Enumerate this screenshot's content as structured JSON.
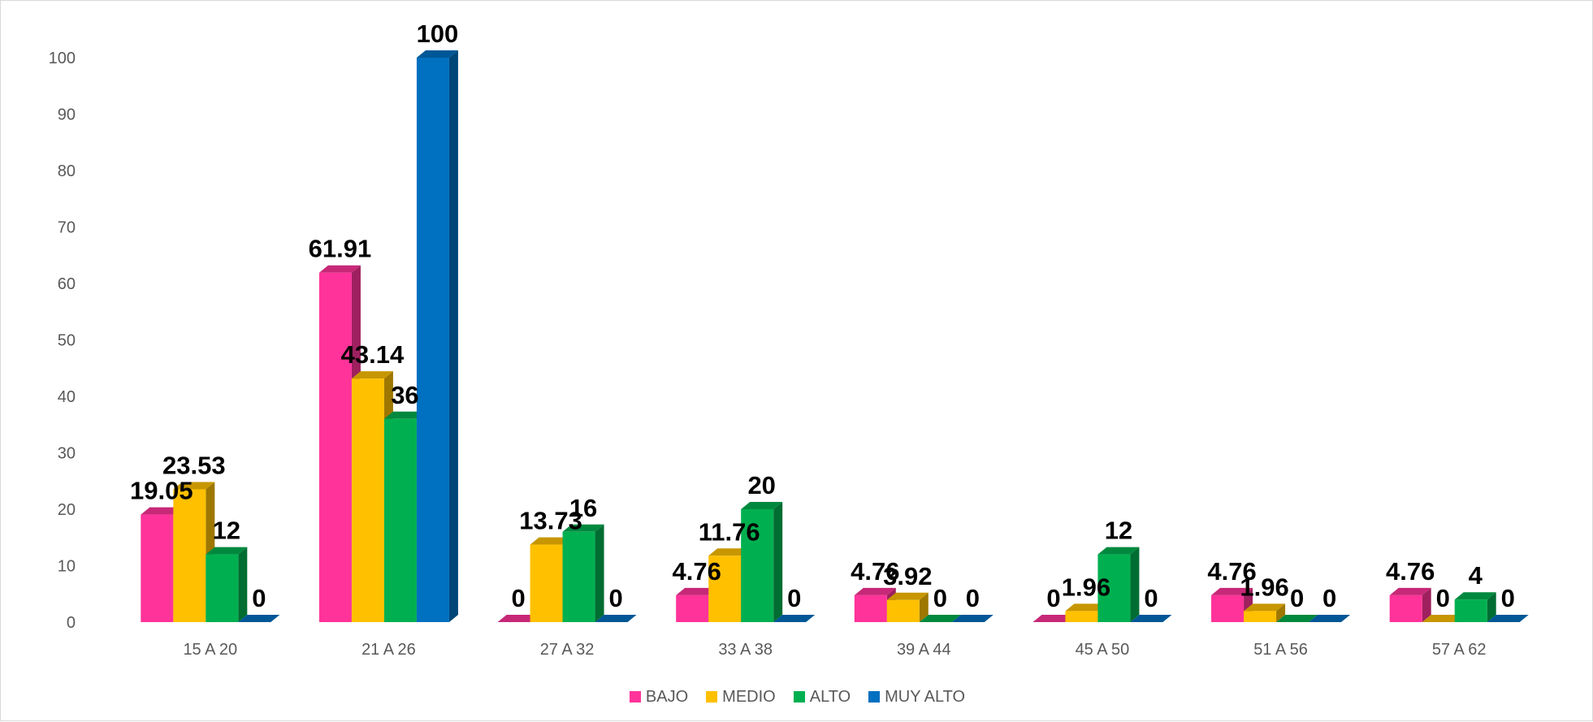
{
  "chart_data": {
    "type": "bar",
    "title": "",
    "xlabel": "",
    "ylabel": "",
    "ylim": [
      0,
      100
    ],
    "yticks": [
      0,
      10,
      20,
      30,
      40,
      50,
      60,
      70,
      80,
      90,
      100
    ],
    "grid": false,
    "legend_position": "bottom",
    "categories": [
      "15 A 20",
      "21 A 26",
      "27 A 32",
      "33 A 38",
      "39 A 44",
      "45 A 50",
      "51 A 56",
      "57 A 62"
    ],
    "series": [
      {
        "name": "BAJO",
        "color": "#FF3399",
        "values": [
          19.05,
          61.91,
          0,
          4.76,
          4.76,
          0,
          4.76,
          4.76
        ],
        "labels": [
          "19.05",
          "61.91",
          "0",
          "4.76",
          "4.76",
          "0",
          "4.76",
          "4.76"
        ]
      },
      {
        "name": "MEDIO",
        "color": "#FFC000",
        "values": [
          23.53,
          43.14,
          13.73,
          11.76,
          3.92,
          1.96,
          1.96,
          0
        ],
        "labels": [
          "23.53",
          "43.14",
          "13.73",
          "11.76",
          "3.92",
          "1.96",
          "1.96",
          "0"
        ]
      },
      {
        "name": "ALTO",
        "color": "#00B050",
        "values": [
          12,
          36,
          16,
          20,
          0,
          12,
          0,
          4
        ],
        "labels": [
          "12",
          "36",
          "16",
          "20",
          "0",
          "12",
          "0",
          "4"
        ]
      },
      {
        "name": "MUY ALTO",
        "color": "#0070C0",
        "values": [
          0,
          100,
          0,
          0,
          0,
          0,
          0,
          0
        ],
        "labels": [
          "0",
          "100",
          "0",
          "0",
          "0",
          "0",
          "0",
          "0"
        ]
      }
    ]
  }
}
